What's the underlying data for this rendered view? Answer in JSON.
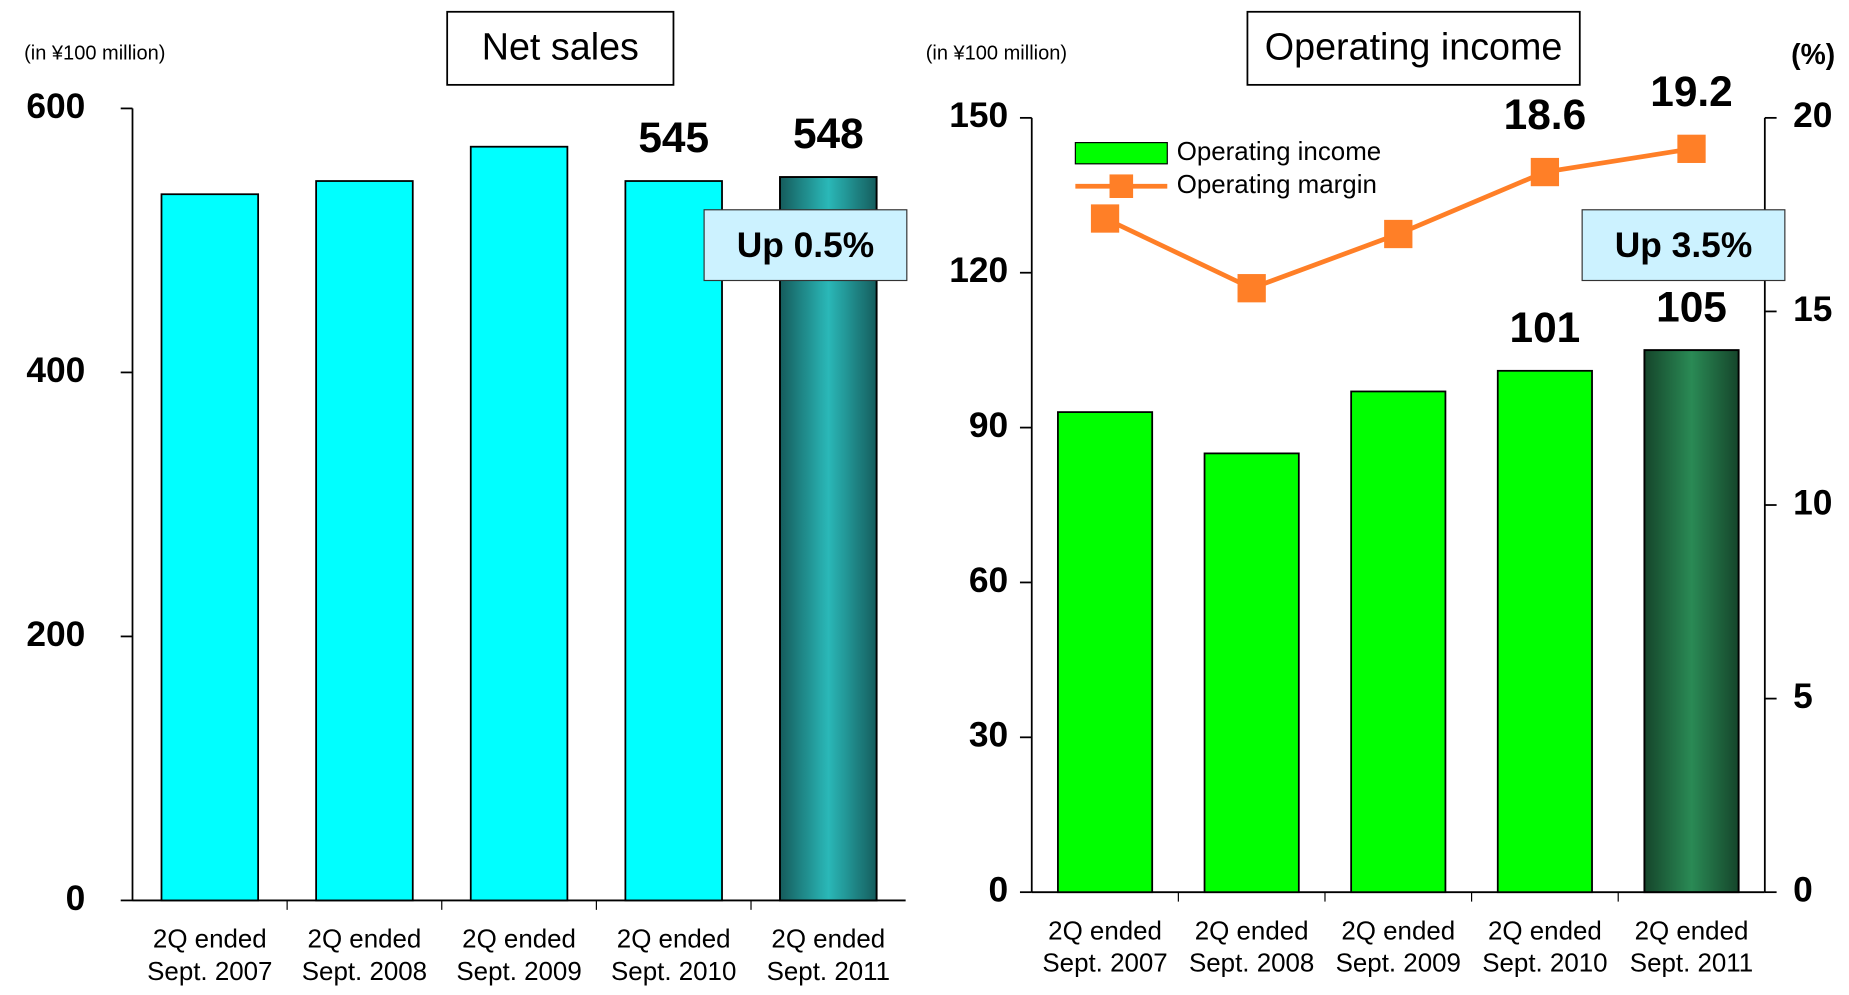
{
  "chart_data": [
    {
      "type": "bar",
      "title": "Net sales",
      "unit_label": "(in ¥100 million)",
      "categories": [
        "2Q ended\nSept. 2007",
        "2Q ended\nSept. 2008",
        "2Q ended\nSept. 2009",
        "2Q ended\nSept. 2010",
        "2Q ended\nSept. 2011"
      ],
      "values": [
        535,
        545,
        571,
        545,
        548
      ],
      "value_labels": [
        null,
        null,
        null,
        "545",
        "548"
      ],
      "colors": [
        "#00ffff",
        "#00ffff",
        "#00ffff",
        "#00ffff",
        "#2ab8b8"
      ],
      "ylim": [
        0,
        600
      ],
      "yticks": [
        0,
        200,
        400,
        600
      ],
      "annotation": "Up 0.5%"
    },
    {
      "type": "combo",
      "title": "Operating income",
      "unit_label": "(in ¥100 million)",
      "y2_unit_label": "(%)",
      "categories": [
        "2Q ended\nSept. 2007",
        "2Q ended\nSept. 2008",
        "2Q ended\nSept. 2009",
        "2Q ended\nSept. 2010",
        "2Q ended\nSept. 2011"
      ],
      "series": [
        {
          "name": "Operating income",
          "type": "bar",
          "colors": [
            "#00ff00",
            "#00ff00",
            "#00ff00",
            "#00ff00",
            "#2a8a55"
          ],
          "color": "#00ff00",
          "values": [
            93,
            85,
            97,
            101,
            105
          ],
          "value_labels": [
            null,
            null,
            null,
            "101",
            "105"
          ]
        },
        {
          "name": "Operating margin",
          "type": "line",
          "axis": "y2",
          "color": "#ff7f27",
          "values": [
            17.4,
            15.6,
            17.0,
            18.6,
            19.2
          ],
          "value_labels": [
            null,
            null,
            null,
            "18.6",
            "19.2"
          ]
        }
      ],
      "ylim": [
        0,
        150
      ],
      "yticks": [
        0,
        30,
        60,
        90,
        120,
        150
      ],
      "y2lim": [
        0,
        20
      ],
      "y2ticks": [
        0,
        5,
        10,
        15,
        20
      ],
      "annotation": "Up 3.5%"
    }
  ]
}
